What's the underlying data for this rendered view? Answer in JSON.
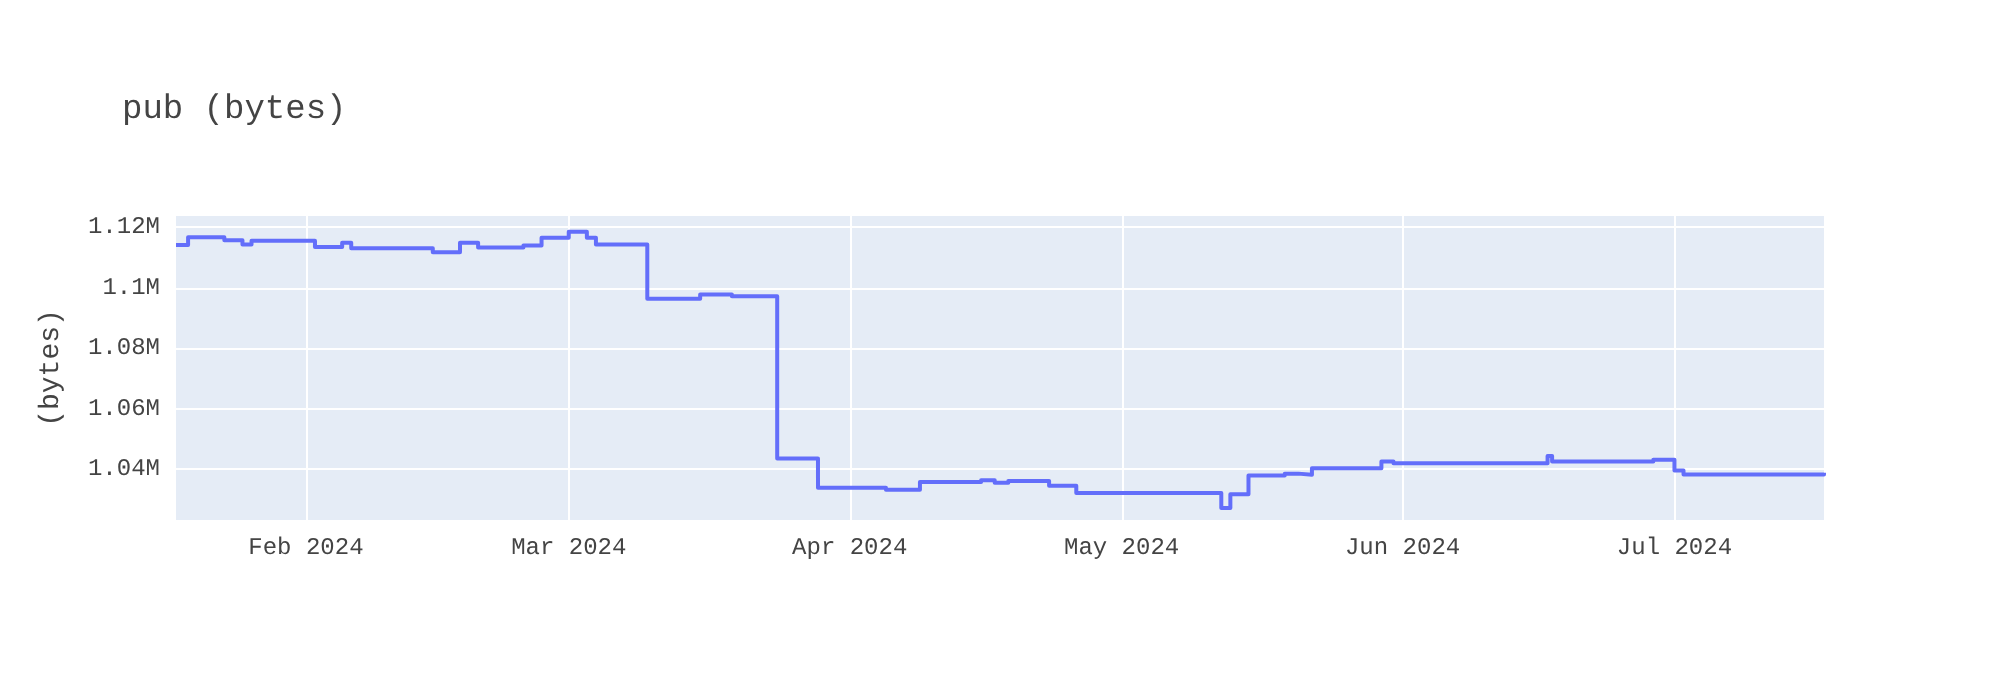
{
  "chart_data": {
    "type": "step",
    "title": "pub (bytes)",
    "ylabel": "(bytes)",
    "x": [
      "2024-01-17T16:00",
      "2024-01-19",
      "2024-01-23",
      "2024-01-25",
      "2024-01-26",
      "2024-02-02",
      "2024-02-05",
      "2024-02-06",
      "2024-02-15",
      "2024-02-18",
      "2024-02-20",
      "2024-02-25",
      "2024-02-27",
      "2024-03-01",
      "2024-03-03",
      "2024-03-04",
      "2024-03-09T16:00",
      "2024-03-15T12:00",
      "2024-03-19",
      "2024-03-24",
      "2024-03-28T12:00",
      "2024-04-05",
      "2024-04-08T18:00",
      "2024-04-15T12:00",
      "2024-04-17",
      "2024-04-18T12:00",
      "2024-04-23",
      "2024-04-26",
      "2024-05-12",
      "2024-05-13",
      "2024-05-15",
      "2024-05-19",
      "2024-05-20T12:00",
      "2024-05-22",
      "2024-05-29T16:00",
      "2024-05-31",
      "2024-06-17",
      "2024-06-17T12:00",
      "2024-06-28T16:00",
      "2024-07-01",
      "2024-07-02",
      "2024-07-17T12:00"
    ],
    "series": [
      {
        "color": "#636efa",
        "values": [
          1114000,
          1116600,
          1115600,
          1114200,
          1115400,
          1113400,
          1114800,
          1113000,
          1111600,
          1114800,
          1113200,
          1113900,
          1116400,
          1118400,
          1116400,
          1114200,
          1096300,
          1097700,
          1097100,
          1043600,
          1033900,
          1033300,
          1035800,
          1036400,
          1035600,
          1036200,
          1034600,
          1032200,
          1027300,
          1031800,
          1038000,
          1038600,
          1038200,
          1040400,
          1042600,
          1042000,
          1044400,
          1042600,
          1043200,
          1039600,
          1038300,
          1038900
        ]
      }
    ],
    "xlim": [
      "2024-01-17T16:00",
      "2024-07-17T12:00"
    ],
    "xticks": [
      {
        "value": "2024-02-01",
        "label": "Feb 2024"
      },
      {
        "value": "2024-03-01",
        "label": "Mar 2024"
      },
      {
        "value": "2024-04-01",
        "label": "Apr 2024"
      },
      {
        "value": "2024-05-01",
        "label": "May 2024"
      },
      {
        "value": "2024-06-01",
        "label": "Jun 2024"
      },
      {
        "value": "2024-07-01",
        "label": "Jul 2024"
      }
    ],
    "ylim": [
      1023300,
      1123600
    ],
    "yticks": [
      {
        "value": 1040000,
        "label": "1.04M"
      },
      {
        "value": 1060000,
        "label": "1.06M"
      },
      {
        "value": 1080000,
        "label": "1.08M"
      },
      {
        "value": 1100000,
        "label": "1.1M"
      },
      {
        "value": 1120000,
        "label": "1.12M"
      }
    ],
    "grid": true,
    "marker": "none",
    "line_style": "solid"
  }
}
